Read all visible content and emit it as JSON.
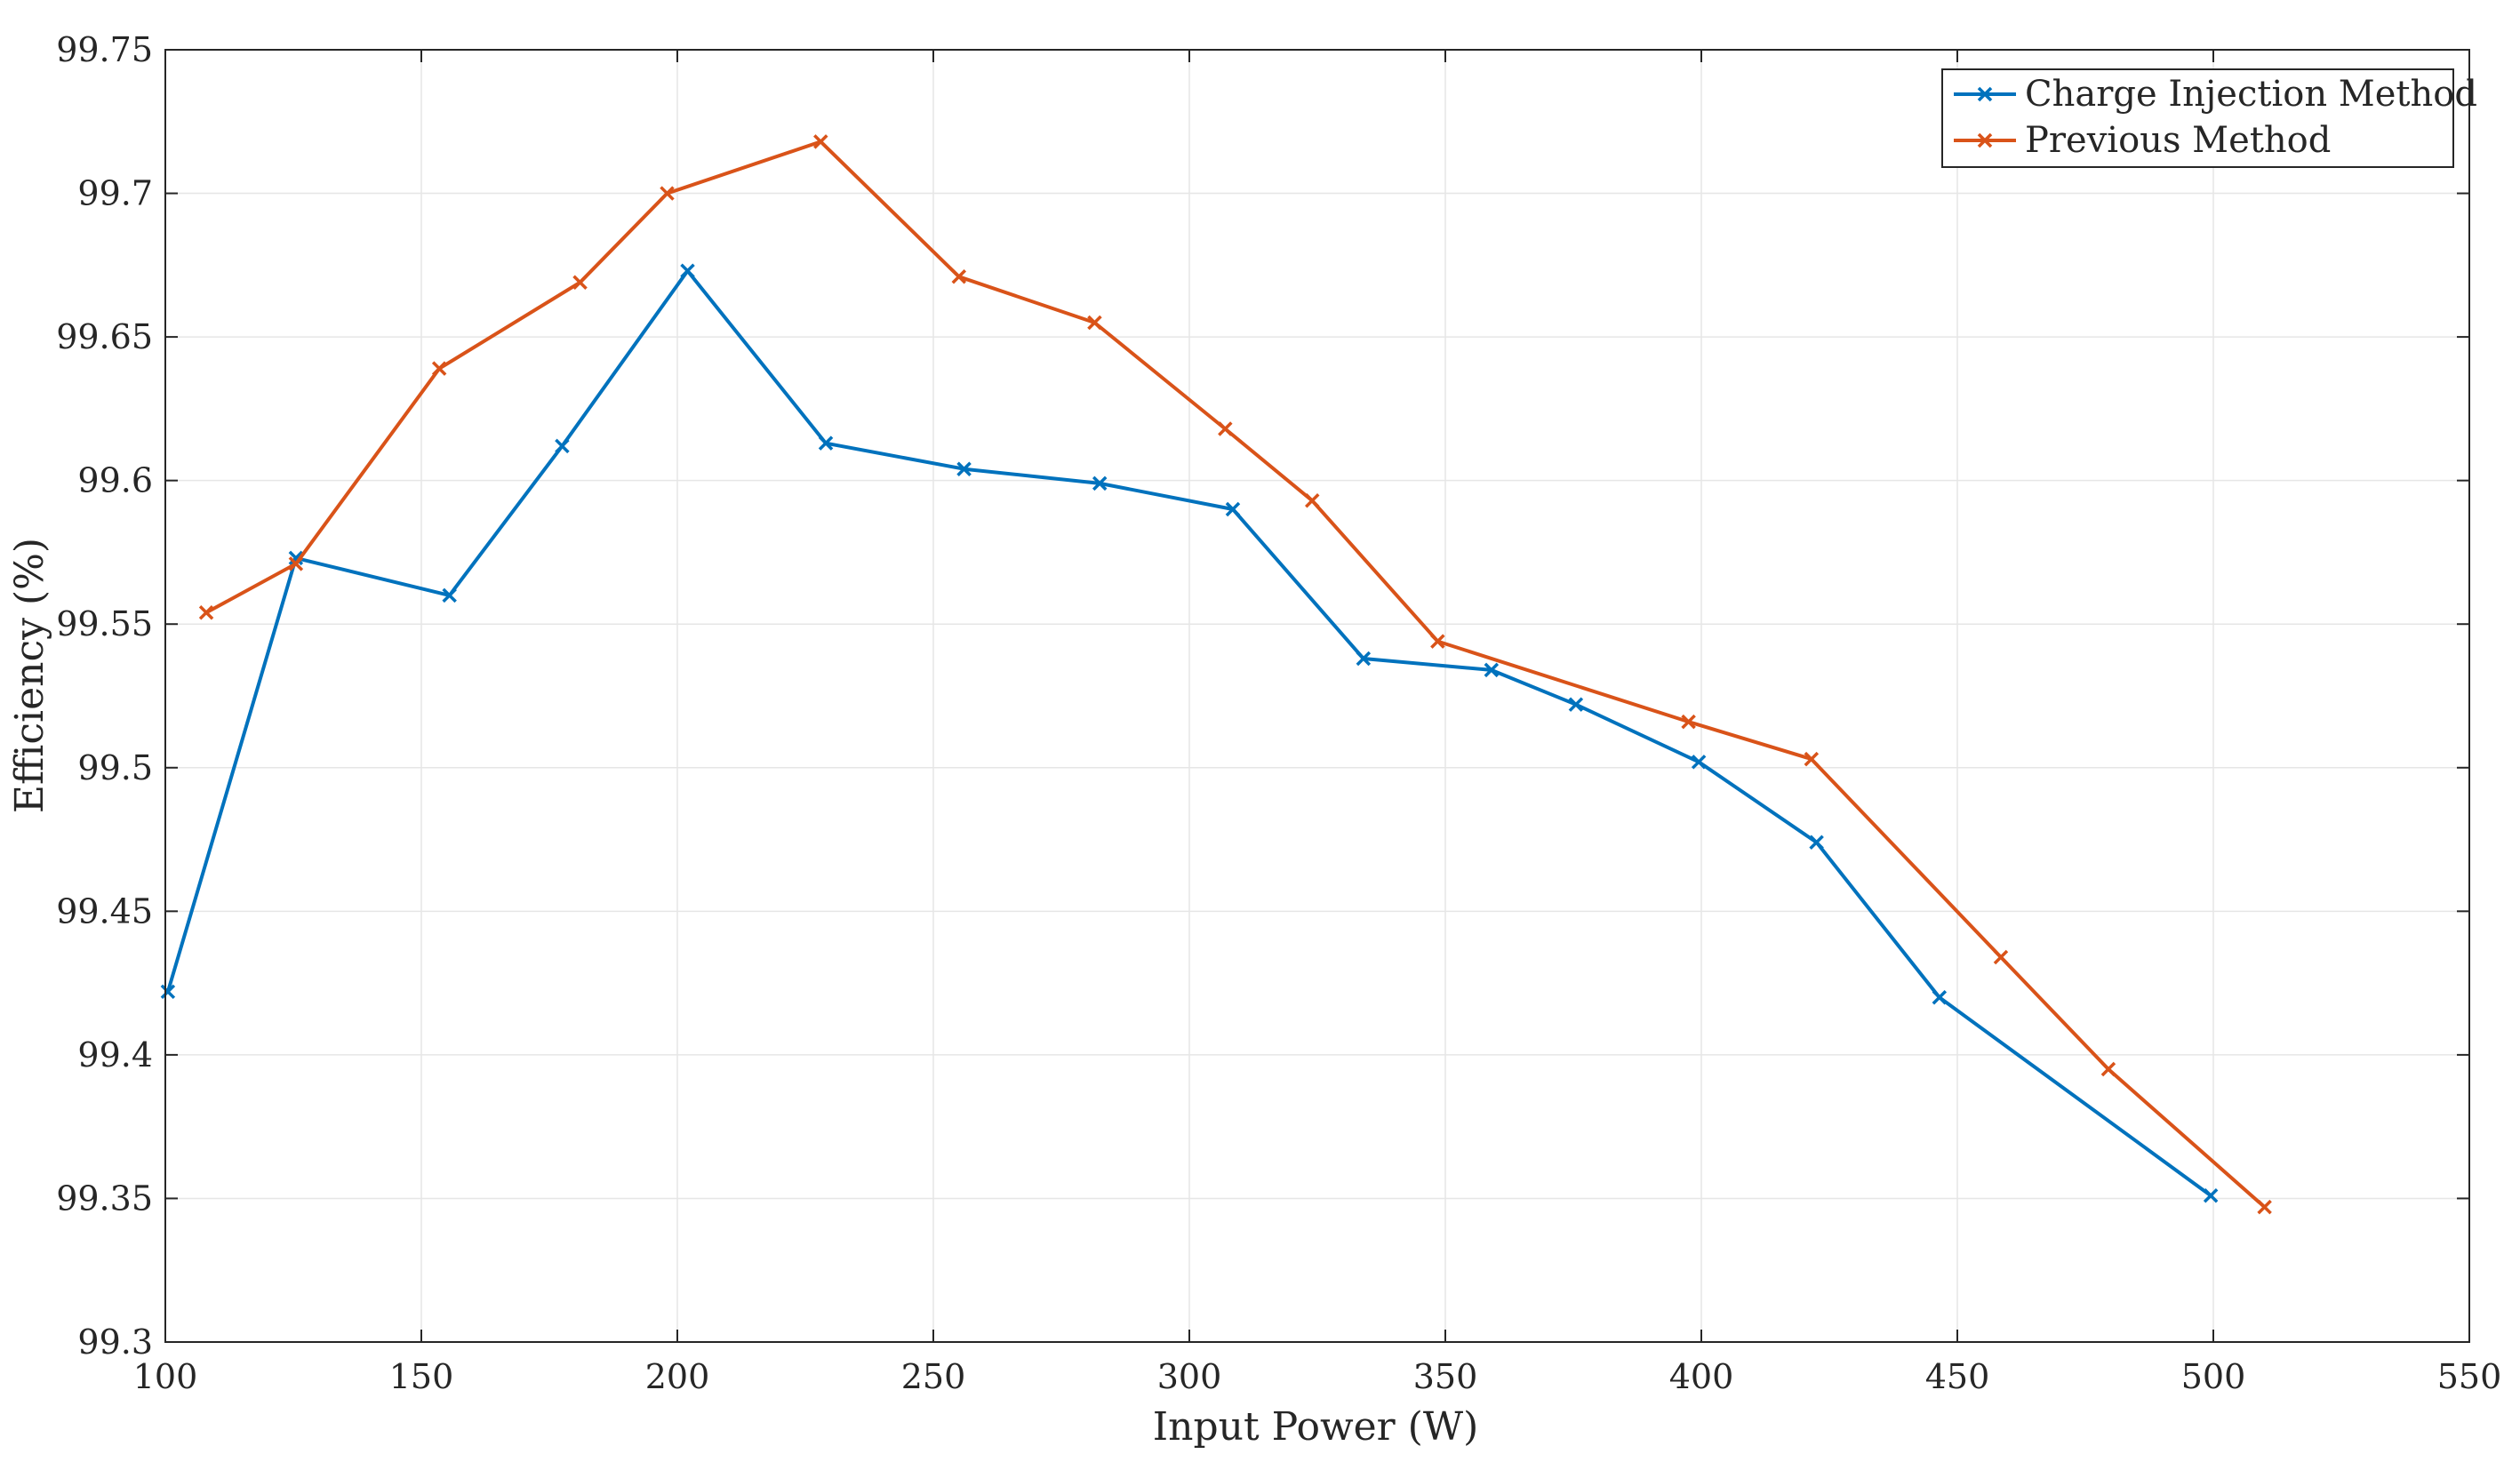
{
  "chart_data": {
    "type": "line",
    "xlabel": "Input Power (W)",
    "ylabel": "Efficiency (%)",
    "xlim": [
      100,
      550
    ],
    "ylim": [
      99.3,
      99.75
    ],
    "x_ticks": [
      100,
      150,
      200,
      250,
      300,
      350,
      400,
      450,
      500,
      550
    ],
    "y_ticks": [
      99.3,
      99.35,
      99.4,
      99.45,
      99.5,
      99.55,
      99.6,
      99.65,
      99.7,
      99.75
    ],
    "x_tick_labels": [
      "100",
      "150",
      "200",
      "250",
      "300",
      "350",
      "400",
      "450",
      "500",
      "550"
    ],
    "y_tick_labels": [
      "99.3",
      "99.35",
      "99.4",
      "99.45",
      "99.5",
      "99.55",
      "99.6",
      "99.65",
      "99.7",
      "99.75"
    ],
    "grid": true,
    "marker": "x",
    "legend_position": "top-right",
    "series": [
      {
        "name": "Charge Injection Method",
        "color": "#0072BD",
        "x": [
          100.5,
          125.5,
          155.5,
          177.5,
          202,
          229,
          256,
          282.5,
          308.5,
          334,
          359,
          375.5,
          399.5,
          422.5,
          446.5,
          499.5
        ],
        "y": [
          99.422,
          99.573,
          99.56,
          99.612,
          99.673,
          99.613,
          99.604,
          99.599,
          99.59,
          99.538,
          99.534,
          99.522,
          99.502,
          99.474,
          99.42,
          99.351
        ]
      },
      {
        "name": "Previous Method",
        "color": "#D95319",
        "x": [
          108,
          125.5,
          153.5,
          181,
          198,
          228,
          255,
          281.5,
          307,
          324,
          348.5,
          397.5,
          421.5,
          458.5,
          479.5,
          510
        ],
        "y": [
          99.554,
          99.571,
          99.639,
          99.669,
          99.7,
          99.718,
          99.671,
          99.655,
          99.618,
          99.593,
          99.544,
          99.516,
          99.503,
          99.434,
          99.395,
          99.347
        ]
      }
    ]
  }
}
